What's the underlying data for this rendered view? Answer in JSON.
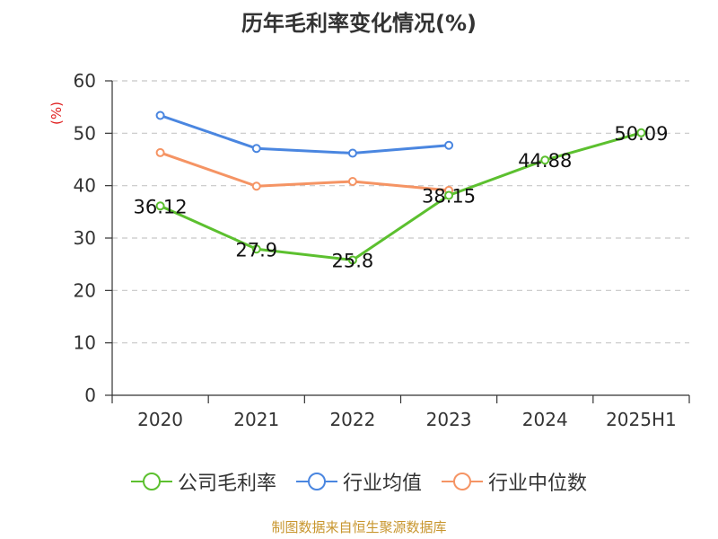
{
  "chart_data": {
    "type": "line",
    "title": "历年毛利率变化情况(%)",
    "ylabel": "(%)",
    "xlabel": "",
    "categories": [
      "2020",
      "2021",
      "2022",
      "2023",
      "2024",
      "2025H1"
    ],
    "ylim": [
      0,
      60
    ],
    "yticks": [
      0,
      10,
      20,
      30,
      40,
      50,
      60
    ],
    "grid": true,
    "legend_position": "bottom",
    "series": [
      {
        "name": "公司毛利率",
        "color": "#5cc02f",
        "values": [
          36.12,
          27.9,
          25.8,
          38.15,
          44.88,
          50.09
        ],
        "labels": [
          "36.12",
          "27.9",
          "25.8",
          "38.15",
          "44.88",
          "50.09"
        ]
      },
      {
        "name": "行业均值",
        "color": "#4a86e0",
        "values": [
          53.4,
          47.1,
          46.2,
          47.7,
          null,
          null
        ]
      },
      {
        "name": "行业中位数",
        "color": "#f59464",
        "values": [
          46.3,
          39.9,
          40.8,
          39.1,
          null,
          null
        ]
      }
    ]
  },
  "source_text": "制图数据来自恒生聚源数据库"
}
